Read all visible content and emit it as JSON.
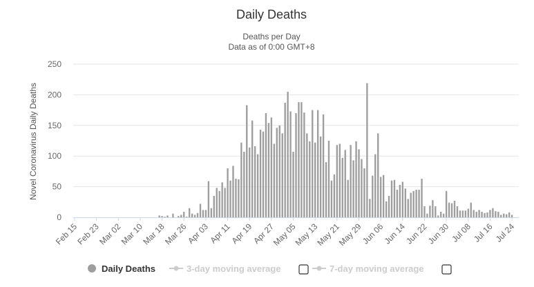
{
  "chart_data": {
    "type": "bar",
    "title": "Daily Deaths",
    "subtitle_lines": [
      "Deaths per Day",
      "Data as of 0:00 GMT+8"
    ],
    "ylabel": "Novel Coronavirus Daily Deaths",
    "xlabel": "",
    "ylim": [
      0,
      250
    ],
    "yticks": [
      0,
      50,
      100,
      150,
      200,
      250
    ],
    "grid": true,
    "x_start": "2020-02-15",
    "x_end": "2020-07-26",
    "xtick_labels": [
      "Feb 15",
      "Feb 23",
      "Mar 02",
      "Mar 10",
      "Mar 18",
      "Mar 26",
      "Apr 03",
      "Apr 11",
      "Apr 19",
      "Apr 27",
      "May 05",
      "May 13",
      "May 21",
      "May 29",
      "Jun 06",
      "Jun 14",
      "Jun 22",
      "Jun 30",
      "Jul 08",
      "Jul 16",
      "Jul 24"
    ],
    "xtick_step_days": 8,
    "series": [
      {
        "name": "Daily Deaths",
        "color": "#9e9e9e",
        "values": [
          0,
          0,
          0,
          0,
          0,
          0,
          0,
          0,
          0,
          0,
          0,
          0,
          0,
          0,
          0,
          0,
          0,
          0,
          0,
          0,
          0,
          0,
          0,
          0,
          0,
          0,
          0,
          0,
          0,
          0,
          0,
          3,
          2,
          1,
          3,
          0,
          6,
          0,
          2,
          4,
          9,
          1,
          15,
          6,
          4,
          7,
          22,
          12,
          12,
          59,
          15,
          35,
          48,
          43,
          57,
          48,
          80,
          60,
          84,
          63,
          62,
          122,
          107,
          183,
          114,
          158,
          116,
          103,
          143,
          140,
          170,
          154,
          163,
          120,
          146,
          150,
          137,
          187,
          205,
          173,
          107,
          170,
          188,
          188,
          171,
          137,
          124,
          175,
          122,
          175,
          132,
          168,
          90,
          125,
          60,
          70,
          118,
          120,
          97,
          110,
          61,
          118,
          93,
          124,
          111,
          95,
          80,
          219,
          30,
          68,
          103,
          137,
          66,
          69,
          26,
          35,
          60,
          61,
          45,
          53,
          58,
          47,
          30,
          40,
          43,
          45,
          45,
          63,
          18,
          6,
          19,
          28,
          18,
          3,
          9,
          6,
          43,
          24,
          23,
          27,
          18,
          11,
          11,
          11,
          14,
          24,
          12,
          9,
          12,
          9,
          7,
          8,
          12,
          15,
          10,
          9,
          4,
          6,
          5,
          8,
          4
        ]
      }
    ],
    "legend": [
      {
        "label": "Daily Deaths",
        "enabled": true
      },
      {
        "label": "3-day moving average",
        "enabled": false
      },
      {
        "label": "7-day moving average",
        "enabled": false
      }
    ],
    "legend_placement": "bottom"
  }
}
